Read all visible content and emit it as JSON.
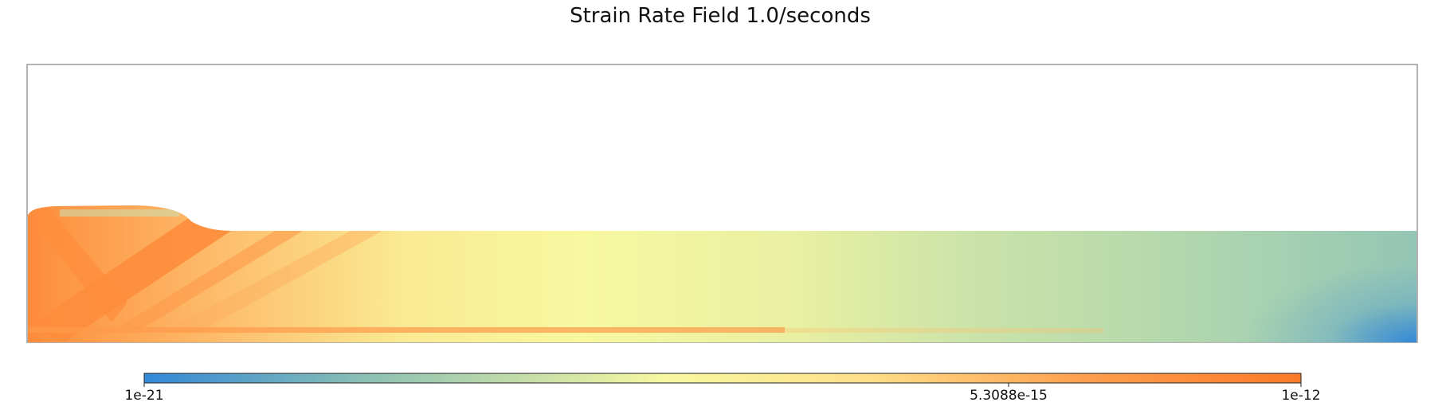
{
  "chart_data": {
    "type": "heatmap",
    "title": "Strain Rate Field 1.0/seconds",
    "colorbar": {
      "scale": "log",
      "range": [
        1e-21,
        1e-12
      ],
      "ticks": [
        {
          "value": 1e-21,
          "label": "1e-21"
        },
        {
          "value": 5.3088e-15,
          "label": "5.3088e-15"
        },
        {
          "value": 1e-12,
          "label": "1e-12"
        }
      ],
      "colors": [
        "#3288d8",
        "#8fc2b2",
        "#f7f8a0",
        "#fee08b",
        "#fd8d3c",
        "#fb7a2a"
      ]
    },
    "grid": false,
    "legend": "bottom"
  }
}
